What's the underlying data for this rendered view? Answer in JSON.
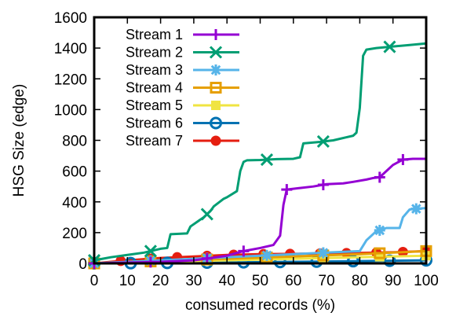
{
  "chart_data": {
    "type": "line",
    "xlabel": "consumed records (%)",
    "ylabel": "HSG Size (edge)",
    "xlim": [
      0,
      100
    ],
    "ylim": [
      0,
      1600
    ],
    "xticks": [
      "0",
      "10",
      "20",
      "30",
      "40",
      "50",
      "60",
      "70",
      "80",
      "90",
      "100"
    ],
    "yticks": [
      "0",
      "200",
      "400",
      "600",
      "800",
      "1000",
      "1200",
      "1400",
      "1600"
    ],
    "grid": false,
    "legend_position": "top-left",
    "series": [
      {
        "name": "Stream 1",
        "color": "#9400d3",
        "marker": "plus",
        "markers_x": [
          0,
          17,
          34,
          45,
          58,
          69,
          86,
          93
        ],
        "x": [
          0,
          10,
          20,
          30,
          40,
          45,
          50,
          54,
          56,
          57,
          58,
          62,
          66,
          70,
          75,
          78,
          82,
          84,
          86,
          88,
          90,
          93,
          96,
          100
        ],
        "y": [
          0,
          5,
          10,
          20,
          50,
          80,
          100,
          120,
          180,
          380,
          480,
          490,
          500,
          515,
          520,
          530,
          545,
          555,
          560,
          600,
          640,
          675,
          680,
          680
        ]
      },
      {
        "name": "Stream 2",
        "color": "#009e73",
        "marker": "x",
        "markers_x": [
          0,
          17,
          34,
          52,
          69,
          89
        ],
        "x": [
          0,
          5,
          10,
          15,
          20,
          22,
          23,
          28,
          29,
          33,
          35,
          36,
          39,
          40,
          43,
          44,
          45,
          46,
          50,
          55,
          60,
          62,
          63,
          68,
          72,
          76,
          78,
          79,
          80,
          81,
          82,
          85,
          90,
          95,
          100
        ],
        "y": [
          20,
          40,
          55,
          70,
          95,
          100,
          190,
          195,
          240,
          300,
          340,
          370,
          420,
          430,
          470,
          600,
          660,
          670,
          672,
          678,
          680,
          690,
          780,
          790,
          800,
          820,
          830,
          850,
          1010,
          1350,
          1390,
          1400,
          1410,
          1420,
          1430
        ]
      },
      {
        "name": "Stream 3",
        "color": "#56b4e9",
        "marker": "asterisk",
        "markers_x": [
          0,
          17,
          34,
          52,
          69,
          86,
          97
        ],
        "x": [
          0,
          20,
          40,
          55,
          70,
          80,
          82,
          85,
          86,
          88,
          92,
          93,
          95,
          97,
          100
        ],
        "y": [
          0,
          20,
          40,
          55,
          70,
          80,
          150,
          210,
          215,
          230,
          230,
          300,
          350,
          355,
          360
        ]
      },
      {
        "name": "Stream 4",
        "color": "#e69f00",
        "marker": "square",
        "markers_x": [
          0,
          17,
          34,
          52,
          69,
          86,
          100
        ],
        "x": [
          0,
          20,
          40,
          60,
          80,
          90,
          100
        ],
        "y": [
          0,
          15,
          30,
          45,
          60,
          70,
          80
        ]
      },
      {
        "name": "Stream 5",
        "color": "#f0e442",
        "marker": "filled-square",
        "markers_x": [
          0,
          17,
          34,
          52,
          69,
          86,
          100
        ],
        "x": [
          0,
          20,
          40,
          60,
          80,
          100
        ],
        "y": [
          0,
          10,
          20,
          30,
          40,
          50
        ]
      },
      {
        "name": "Stream 6",
        "color": "#0072b2",
        "marker": "circle",
        "markers_x": [
          0,
          11,
          22,
          34,
          45,
          56,
          67,
          78,
          89,
          100
        ],
        "x": [
          0,
          20,
          40,
          60,
          80,
          100
        ],
        "y": [
          0,
          3,
          6,
          10,
          15,
          20
        ]
      },
      {
        "name": "Stream 7",
        "color": "#e51e10",
        "marker": "filled-circle",
        "markers_x": [
          0,
          8,
          17,
          25,
          34,
          42,
          51,
          59,
          68,
          76,
          85,
          93,
          100
        ],
        "x": [
          0,
          5,
          10,
          20,
          30,
          40,
          50,
          60,
          70,
          80,
          90,
          100
        ],
        "y": [
          0,
          10,
          20,
          35,
          45,
          55,
          60,
          62,
          65,
          68,
          72,
          80
        ]
      }
    ]
  }
}
